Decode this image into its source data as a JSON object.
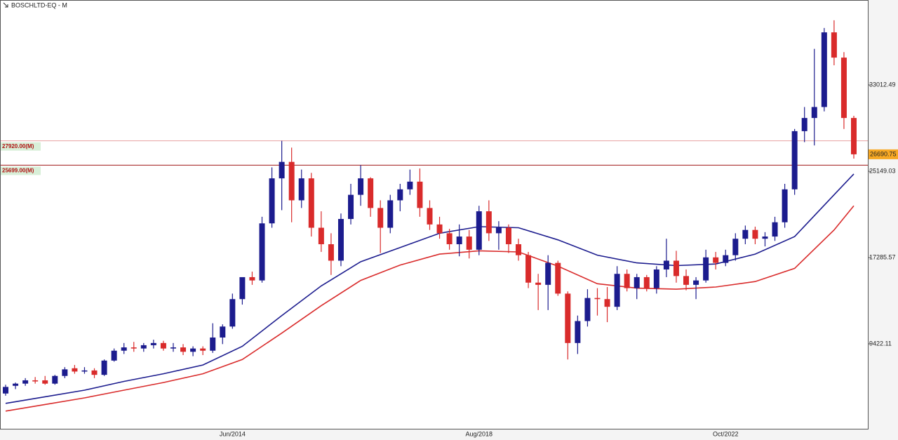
{
  "chart_data": {
    "type": "candlestick",
    "title": "BOSCHLTD-EQ - M",
    "categories": [
      null,
      null,
      null,
      null,
      null,
      null,
      null,
      null,
      null,
      null,
      null,
      null,
      null,
      null,
      null,
      null,
      null,
      null,
      null,
      null,
      null,
      null,
      null,
      "Jun/2014",
      null,
      null,
      null,
      null,
      null,
      null,
      null,
      null,
      null,
      null,
      null,
      null,
      null,
      null,
      null,
      null,
      null,
      null,
      null,
      null,
      null,
      null,
      null,
      null,
      "Aug/2018",
      null,
      null,
      null,
      null,
      null,
      null,
      null,
      null,
      null,
      null,
      null,
      null,
      null,
      null,
      null,
      null,
      null,
      null,
      null,
      null,
      null,
      null,
      null,
      null,
      "Oct/2022",
      null,
      null,
      null,
      null,
      null,
      null,
      null,
      null,
      null,
      null,
      null,
      null,
      null
    ],
    "open": [
      4900,
      5600,
      5800,
      6100,
      6100,
      5800,
      6500,
      7200,
      6900,
      7000,
      6600,
      7900,
      8800,
      9100,
      9000,
      9300,
      9500,
      9000,
      9100,
      8700,
      9000,
      8800,
      10000,
      11000,
      13500,
      15500,
      15200,
      20400,
      24500,
      26000,
      22500,
      24500,
      20000,
      18500,
      17000,
      20800,
      23000,
      24500,
      21800,
      20000,
      22500,
      23500,
      24200,
      21800,
      20300,
      19500,
      18500,
      19200,
      18000,
      21500,
      19500,
      20000,
      18500,
      17500,
      15000,
      14800,
      16800,
      14000,
      9500,
      11500,
      13600,
      13500,
      12800,
      15800,
      14500,
      15500,
      14500,
      16200,
      17000,
      15600,
      14800,
      15200,
      17300,
      16800,
      17500,
      19000,
      19800,
      19000,
      19200,
      20500,
      23500,
      28800,
      30000,
      31000,
      37800,
      35500,
      30000
    ],
    "high": [
      5700,
      5900,
      6300,
      6400,
      6500,
      6600,
      7300,
      7500,
      7300,
      7200,
      8000,
      9000,
      9500,
      9600,
      9500,
      9800,
      9700,
      9500,
      9400,
      9200,
      9200,
      11300,
      11200,
      14000,
      15200,
      16000,
      21000,
      25500,
      27920,
      27300,
      25300,
      25000,
      21500,
      19500,
      21300,
      24000,
      25700,
      24600,
      22500,
      23000,
      24000,
      25300,
      25400,
      22500,
      21000,
      19900,
      20300,
      19800,
      22000,
      22500,
      20600,
      20300,
      19000,
      17800,
      15800,
      17500,
      17000,
      14200,
      12000,
      14400,
      14500,
      14600,
      16500,
      16200,
      15800,
      15700,
      16500,
      19000,
      17900,
      16200,
      15500,
      18000,
      17800,
      18000,
      19500,
      20200,
      20100,
      19600,
      21000,
      24000,
      29000,
      31000,
      36300,
      38200,
      38900,
      36000,
      30200
    ],
    "low": [
      4700,
      5300,
      5600,
      5800,
      5700,
      5700,
      6300,
      6700,
      6700,
      6300,
      6500,
      7800,
      8500,
      8700,
      8700,
      9000,
      8800,
      8700,
      8400,
      8300,
      8400,
      8600,
      9400,
      10800,
      13000,
      14800,
      15000,
      20000,
      21600,
      20500,
      21800,
      19200,
      17800,
      15700,
      16500,
      20300,
      22000,
      21000,
      17700,
      19500,
      21500,
      23000,
      21000,
      19800,
      19000,
      18000,
      17400,
      17200,
      17500,
      18800,
      18000,
      17700,
      17000,
      14500,
      12500,
      12500,
      13800,
      8000,
      8500,
      11000,
      12000,
      11400,
      12500,
      14200,
      13500,
      14200,
      14000,
      15500,
      15000,
      14300,
      13500,
      15000,
      16200,
      16500,
      17000,
      18500,
      18500,
      18300,
      18800,
      20000,
      23000,
      27800,
      27500,
      30600,
      34800,
      29000,
      26300
    ],
    "close": [
      5500,
      5800,
      6100,
      6000,
      5800,
      6500,
      7100,
      6900,
      7000,
      6600,
      7900,
      8800,
      9100,
      9000,
      9300,
      9500,
      9000,
      9100,
      8700,
      9000,
      8800,
      10000,
      11000,
      13500,
      15500,
      15200,
      20400,
      24500,
      26000,
      22500,
      24500,
      20000,
      18500,
      17000,
      20800,
      23000,
      24500,
      21800,
      20000,
      22500,
      23500,
      24200,
      21800,
      20300,
      19500,
      18500,
      19200,
      18000,
      21500,
      19500,
      20000,
      18500,
      17500,
      15000,
      14800,
      16800,
      14000,
      9500,
      11500,
      13600,
      13500,
      12800,
      15800,
      14500,
      15500,
      14500,
      16200,
      17000,
      15600,
      14800,
      15200,
      17300,
      16800,
      17500,
      19000,
      19800,
      19000,
      19200,
      20500,
      23500,
      28800,
      30000,
      31000,
      37800,
      35500,
      30000,
      26690.75
    ],
    "up_color": "#1c1c8e",
    "down_color": "#d92b2b",
    "lines": [
      {
        "color": "#1c1c8e",
        "x": [
          0,
          4,
          8,
          12,
          16,
          20,
          24,
          28,
          32,
          36,
          40,
          44,
          48,
          52,
          56,
          60,
          64,
          68,
          72,
          76,
          80,
          84,
          86
        ],
        "values": [
          4000,
          4600,
          5200,
          6000,
          6700,
          7500,
          9200,
          12000,
          14700,
          16900,
          18200,
          19500,
          20100,
          20000,
          18900,
          17500,
          16800,
          16550,
          16700,
          17600,
          19200,
          23000,
          24900
        ]
      },
      {
        "color": "#d92b2b",
        "x": [
          0,
          4,
          8,
          12,
          16,
          20,
          24,
          28,
          32,
          36,
          40,
          44,
          48,
          52,
          56,
          60,
          64,
          68,
          72,
          76,
          80,
          84,
          86
        ],
        "values": [
          3300,
          3900,
          4500,
          5200,
          5900,
          6700,
          8000,
          10400,
          12900,
          15200,
          16600,
          17600,
          17900,
          17800,
          16500,
          14900,
          14500,
          14400,
          14600,
          15100,
          16300,
          19800,
          22000
        ]
      }
    ],
    "levels": [
      {
        "value": 27920,
        "label": "27920.00(M)",
        "color": "#e8a0a0"
      },
      {
        "value": 25699,
        "label": "25699.00(M)",
        "color": "#a01818"
      }
    ],
    "ylim": [
      1687,
      40748
    ],
    "yticks": [
      9422.11,
      17285.57,
      25149.03,
      33012.49
    ]
  }
}
